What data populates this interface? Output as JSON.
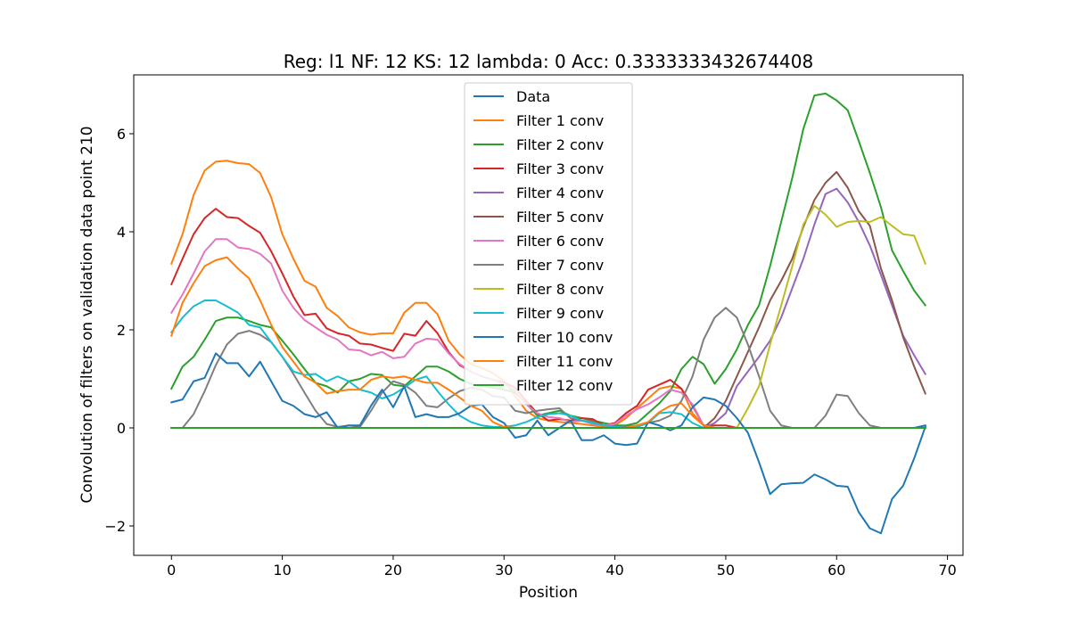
{
  "chart_data": {
    "type": "line",
    "title": "Reg: l1  NF: 12  KS: 12  lambda: 0 Acc: 0.3333333432674408",
    "xlabel": "Position",
    "ylabel": "Convolution of filters on validation data point 210",
    "xlim": [
      -3.4,
      71.4
    ],
    "ylim": [
      -2.6,
      7.2
    ],
    "xticks": [
      0,
      10,
      20,
      30,
      40,
      50,
      60,
      70
    ],
    "yticks": [
      -2,
      0,
      2,
      4,
      6
    ],
    "xtick_labels": [
      "0",
      "10",
      "20",
      "30",
      "40",
      "50",
      "60",
      "70"
    ],
    "ytick_labels": [
      "−2",
      "0",
      "2",
      "4",
      "6"
    ],
    "grid": false,
    "legend_position": "upper-center",
    "x": [
      0,
      1,
      2,
      3,
      4,
      5,
      6,
      7,
      8,
      9,
      10,
      11,
      12,
      13,
      14,
      15,
      16,
      17,
      18,
      19,
      20,
      21,
      22,
      23,
      24,
      25,
      26,
      27,
      28,
      29,
      30,
      31,
      32,
      33,
      34,
      35,
      36,
      37,
      38,
      39,
      40,
      41,
      42,
      43,
      44,
      45,
      46,
      47,
      48,
      49,
      50,
      51,
      52,
      53,
      54,
      55,
      56,
      57,
      58,
      59,
      60,
      61,
      62,
      63,
      64,
      65,
      66,
      67,
      68
    ],
    "series": [
      {
        "name": "Data",
        "color": "#1f77b4",
        "values": [
          0,
          0,
          0,
          0,
          0,
          0,
          0,
          0,
          0,
          0,
          0,
          0,
          0,
          0,
          0,
          0,
          0,
          0,
          0,
          0,
          0,
          0,
          0,
          0,
          0,
          0,
          0,
          0,
          0,
          0,
          0,
          0,
          0,
          0,
          0,
          0,
          0,
          0,
          0,
          0,
          0,
          0,
          0,
          0,
          0,
          0,
          0,
          0,
          0,
          0,
          0,
          0,
          0,
          0,
          0,
          0,
          0,
          0,
          0,
          0,
          0,
          0,
          0,
          0,
          0,
          0,
          0,
          0,
          0.05
        ]
      },
      {
        "name": "Filter 1 conv",
        "color": "#ff7f0e",
        "values": [
          3.35,
          3.95,
          4.75,
          5.25,
          5.43,
          5.45,
          5.4,
          5.38,
          5.2,
          4.7,
          3.95,
          3.45,
          3.0,
          2.88,
          2.45,
          2.28,
          2.05,
          1.95,
          1.9,
          1.93,
          1.93,
          2.35,
          2.55,
          2.55,
          2.32,
          1.78,
          1.5,
          1.3,
          1.22,
          1.12,
          0.95,
          0.65,
          0.35,
          0.2,
          0.15,
          0.12,
          0.1,
          0.08,
          0.05,
          0.02,
          0.05,
          0.2,
          0.4,
          0.6,
          0.8,
          0.85,
          0.8,
          0.3,
          0.05,
          0,
          0,
          0,
          0,
          0,
          0,
          0,
          0,
          0,
          0,
          0,
          0,
          0,
          0,
          0,
          0,
          0,
          0,
          0,
          0
        ]
      },
      {
        "name": "Filter 2 conv",
        "color": "#2ca02c",
        "values": [
          0.8,
          1.25,
          1.45,
          1.8,
          2.18,
          2.25,
          2.25,
          2.18,
          2.1,
          2.05,
          1.78,
          1.5,
          1.2,
          0.92,
          0.85,
          0.72,
          0.95,
          1.0,
          1.1,
          1.08,
          0.88,
          0.85,
          1.05,
          1.25,
          1.25,
          1.15,
          1.0,
          0.9,
          0.85,
          0.82,
          0.78,
          0.72,
          0.5,
          0.25,
          0.3,
          0.35,
          0.25,
          0.2,
          0.15,
          0.1,
          0.05,
          0.05,
          0.1,
          0.3,
          0.5,
          0.75,
          1.2,
          1.45,
          1.3,
          0.9,
          1.2,
          1.6,
          2.1,
          2.5,
          3.3,
          4.2,
          5.1,
          6.1,
          6.78,
          6.82,
          6.68,
          6.48,
          5.85,
          5.2,
          4.5,
          3.62,
          3.2,
          2.8,
          2.5
        ]
      },
      {
        "name": "Filter 3 conv",
        "color": "#d62728",
        "values": [
          2.93,
          3.45,
          3.95,
          4.28,
          4.47,
          4.3,
          4.28,
          4.12,
          3.98,
          3.6,
          3.15,
          2.68,
          2.3,
          2.33,
          2.03,
          1.93,
          1.88,
          1.72,
          1.7,
          1.63,
          1.57,
          1.92,
          1.88,
          2.18,
          1.93,
          1.55,
          1.28,
          1.15,
          1.05,
          0.98,
          0.93,
          0.82,
          0.55,
          0.3,
          0.15,
          0.18,
          0.15,
          0.2,
          0.18,
          0.05,
          0.1,
          0.3,
          0.45,
          0.78,
          0.88,
          0.98,
          0.8,
          0.45,
          0.05,
          0.05,
          0.05,
          0,
          0,
          0,
          0,
          0,
          0,
          0,
          0,
          0,
          0,
          0,
          0,
          0,
          0,
          0,
          0,
          0,
          0
        ]
      },
      {
        "name": "Filter 4 conv",
        "color": "#9467bd",
        "values": [
          0,
          0,
          0,
          0,
          0,
          0,
          0,
          0,
          0,
          0,
          0,
          0,
          0,
          0,
          0,
          0,
          0,
          0,
          0,
          0,
          0,
          0,
          0,
          0,
          0,
          0,
          0,
          0,
          0,
          0,
          0,
          0,
          0,
          0,
          0,
          0,
          0,
          0,
          0,
          0,
          0,
          0,
          0,
          0,
          0,
          0,
          0,
          0,
          0,
          0.1,
          0.3,
          0.85,
          1.15,
          1.45,
          1.78,
          2.25,
          2.85,
          3.45,
          4.15,
          4.77,
          4.88,
          4.6,
          4.2,
          3.72,
          3.12,
          2.5,
          1.88,
          1.48,
          1.1
        ]
      },
      {
        "name": "Filter 5 conv",
        "color": "#8c564b",
        "values": [
          0,
          0,
          0,
          0,
          0,
          0,
          0,
          0,
          0,
          0,
          0,
          0,
          0,
          0,
          0,
          0,
          0,
          0,
          0,
          0,
          0,
          0,
          0,
          0,
          0,
          0,
          0,
          0,
          0,
          0,
          0,
          0,
          0,
          0,
          0,
          0,
          0,
          0,
          0,
          0,
          0,
          0,
          0,
          0,
          0,
          0,
          0,
          0,
          0,
          0.2,
          0.55,
          1.05,
          1.55,
          2.05,
          2.6,
          3.0,
          3.45,
          4.1,
          4.65,
          5.0,
          5.22,
          4.9,
          4.42,
          4.12,
          3.25,
          2.6,
          1.85,
          1.25,
          0.7
        ]
      },
      {
        "name": "Filter 6 conv",
        "color": "#e377c2",
        "values": [
          2.35,
          2.72,
          3.15,
          3.6,
          3.85,
          3.85,
          3.68,
          3.65,
          3.55,
          3.35,
          2.8,
          2.45,
          2.2,
          2.05,
          1.9,
          1.8,
          1.6,
          1.58,
          1.48,
          1.55,
          1.42,
          1.45,
          1.72,
          1.82,
          1.8,
          1.52,
          1.3,
          1.15,
          1.05,
          0.98,
          0.9,
          0.75,
          0.48,
          0.3,
          0.22,
          0.2,
          0.12,
          0.15,
          0.08,
          0.05,
          0.08,
          0.25,
          0.38,
          0.48,
          0.62,
          0.78,
          0.72,
          0.48,
          0.05,
          0,
          0,
          0,
          0,
          0,
          0,
          0,
          0,
          0,
          0,
          0,
          0,
          0,
          0,
          0,
          0,
          0,
          0,
          0,
          0
        ]
      },
      {
        "name": "Filter 7 conv",
        "color": "#7f7f7f",
        "values": [
          0,
          0,
          0.28,
          0.75,
          1.28,
          1.7,
          1.92,
          1.98,
          1.9,
          1.75,
          1.45,
          1.1,
          0.72,
          0.35,
          0.08,
          0.02,
          0.05,
          0.02,
          0.35,
          0.72,
          0.95,
          0.88,
          0.72,
          0.45,
          0.42,
          0.6,
          0.75,
          0.82,
          0.78,
          0.65,
          0.62,
          0.35,
          0.3,
          0.35,
          0.38,
          0.4,
          0.2,
          0.15,
          0.12,
          0.05,
          0.02,
          0.02,
          0.05,
          0.1,
          0.15,
          0.25,
          0.55,
          1.05,
          1.8,
          2.25,
          2.45,
          2.25,
          1.7,
          1.05,
          0.35,
          0.05,
          0,
          0,
          0,
          0.25,
          0.68,
          0.65,
          0.3,
          0.05,
          0,
          0,
          0,
          0,
          0
        ]
      },
      {
        "name": "Filter 8 conv",
        "color": "#bcbd22",
        "values": [
          0,
          0,
          0,
          0,
          0,
          0,
          0,
          0,
          0,
          0,
          0,
          0,
          0,
          0,
          0,
          0,
          0,
          0,
          0,
          0,
          0,
          0,
          0,
          0,
          0,
          0,
          0,
          0,
          0,
          0,
          0,
          0,
          0,
          0,
          0,
          0,
          0,
          0,
          0,
          0,
          0,
          0,
          0,
          0,
          0,
          0,
          0,
          0,
          0,
          0,
          0,
          0,
          0.4,
          0.85,
          1.7,
          2.5,
          3.3,
          4.15,
          4.53,
          4.35,
          4.1,
          4.2,
          4.22,
          4.2,
          4.3,
          4.12,
          3.95,
          3.92,
          3.35
        ]
      },
      {
        "name": "Filter 9 conv",
        "color": "#17becf",
        "values": [
          1.95,
          2.25,
          2.48,
          2.6,
          2.6,
          2.48,
          2.35,
          2.1,
          2.05,
          1.75,
          1.45,
          1.15,
          1.08,
          1.1,
          0.95,
          1.05,
          0.95,
          0.78,
          0.72,
          0.6,
          0.68,
          0.82,
          0.98,
          1.05,
          0.75,
          0.48,
          0.25,
          0.12,
          0.05,
          0.02,
          0.02,
          0.05,
          0.12,
          0.22,
          0.28,
          0.3,
          0.25,
          0.15,
          0.1,
          0.05,
          0.02,
          0,
          0.02,
          0.1,
          0.3,
          0.32,
          0.28,
          0.1,
          0,
          0,
          0,
          0,
          0,
          0,
          0,
          0,
          0,
          0,
          0,
          0,
          0,
          0,
          0,
          0,
          0,
          0,
          0,
          0,
          0
        ]
      },
      {
        "name": "Filter 10 conv",
        "color": "#1f77b4",
        "values": [
          0.52,
          0.58,
          0.95,
          1.02,
          1.52,
          1.32,
          1.32,
          1.05,
          1.35,
          0.95,
          0.55,
          0.45,
          0.28,
          0.22,
          0.32,
          0,
          0.05,
          0.05,
          0.45,
          0.78,
          0.42,
          0.85,
          0.22,
          0.28,
          0.22,
          0.22,
          0.3,
          0.45,
          0.48,
          0.22,
          0.1,
          -0.2,
          -0.15,
          0.15,
          -0.15,
          0,
          0.15,
          -0.25,
          -0.25,
          -0.15,
          -0.32,
          -0.35,
          -0.32,
          0.12,
          0.05,
          -0.05,
          0.05,
          0.42,
          0.62,
          0.58,
          0.45,
          0.2,
          -0.1,
          -0.7,
          -1.35,
          -1.15,
          -1.13,
          -1.12,
          -0.95,
          -1.05,
          -1.18,
          -1.2,
          -1.72,
          -2.05,
          -2.15,
          -1.45,
          -1.18,
          -0.62,
          0.02
        ]
      },
      {
        "name": "Filter 11 conv",
        "color": "#ff7f0e",
        "values": [
          1.88,
          2.55,
          2.95,
          3.3,
          3.42,
          3.48,
          3.25,
          3.05,
          2.6,
          2.1,
          1.65,
          1.35,
          1.05,
          0.92,
          0.7,
          0.75,
          0.78,
          0.78,
          0.98,
          1.05,
          1.02,
          1.05,
          0.98,
          0.92,
          0.92,
          0.78,
          0.62,
          0.45,
          0.35,
          0.12,
          0.02,
          0,
          0,
          0,
          0,
          0,
          0,
          0,
          0,
          0,
          0,
          0,
          0.05,
          0.12,
          0.32,
          0.45,
          0.5,
          0.25,
          0.05,
          0,
          0,
          0,
          0,
          0,
          0,
          0,
          0,
          0,
          0,
          0,
          0,
          0,
          0,
          0,
          0,
          0,
          0,
          0,
          0
        ]
      },
      {
        "name": "Filter 12 conv",
        "color": "#2ca02c",
        "values": [
          0,
          0,
          0,
          0,
          0,
          0,
          0,
          0,
          0,
          0,
          0,
          0,
          0,
          0,
          0,
          0,
          0,
          0,
          0,
          0,
          0,
          0,
          0,
          0,
          0,
          0,
          0,
          0,
          0,
          0,
          0,
          0,
          0,
          0,
          0,
          0,
          0,
          0,
          0,
          0,
          0,
          0,
          0,
          0,
          0,
          0,
          0,
          0,
          0,
          0,
          0,
          0,
          0,
          0,
          0,
          0,
          0,
          0,
          0,
          0,
          0,
          0,
          0,
          0,
          0,
          0,
          0,
          0,
          0
        ]
      }
    ]
  }
}
